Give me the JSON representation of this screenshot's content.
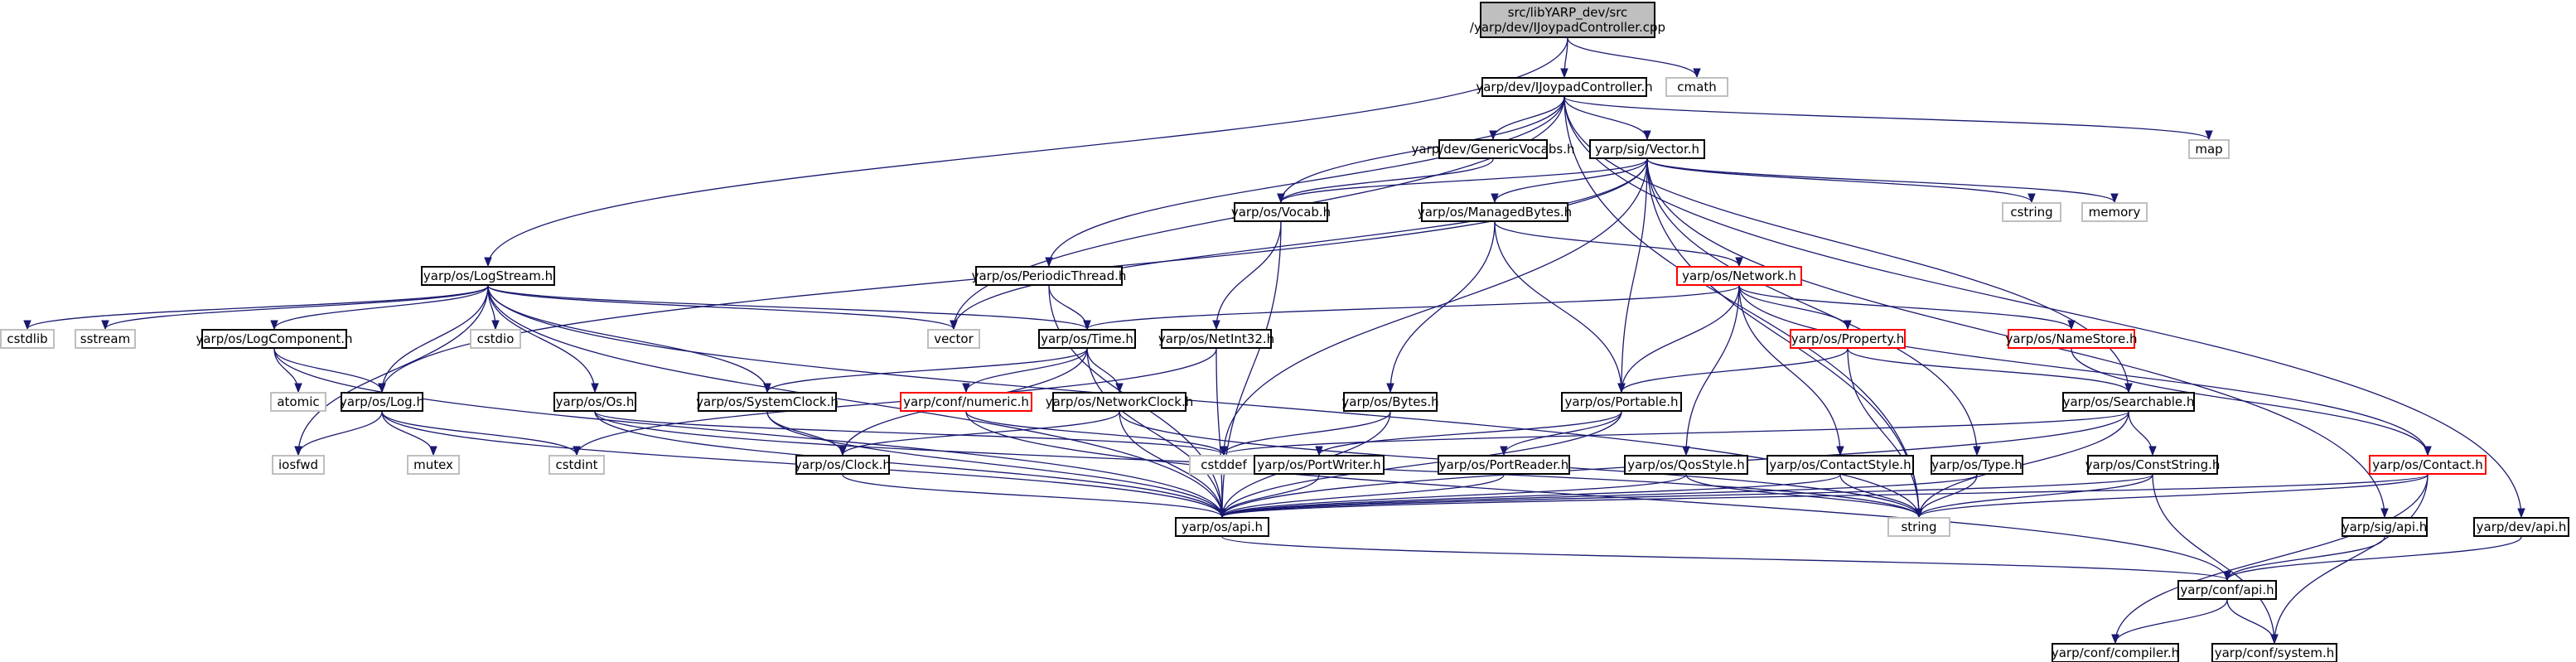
{
  "colors": {
    "edge": "#191970",
    "box_default": "#000000",
    "box_incomplete": "#ff0000",
    "box_external": "#bfbfbf",
    "box_root_fill": "#bfbfbf",
    "text": "#000000"
  },
  "nodes": [
    {
      "id": "root",
      "lines": [
        "src/libYARP_dev/src",
        "/yarp/dev/IJoypadController.cpp"
      ],
      "kind": "root"
    },
    {
      "id": "ijoy",
      "lines": [
        "yarp/dev/IJoypadController.h"
      ],
      "kind": "normal"
    },
    {
      "id": "cmath",
      "lines": [
        "cmath"
      ],
      "kind": "external"
    },
    {
      "id": "logstream",
      "lines": [
        "yarp/os/LogStream.h"
      ],
      "kind": "normal"
    },
    {
      "id": "genvocabs",
      "lines": [
        "yarp/dev/GenericVocabs.h"
      ],
      "kind": "normal"
    },
    {
      "id": "sigvector",
      "lines": [
        "yarp/sig/Vector.h"
      ],
      "kind": "normal"
    },
    {
      "id": "map",
      "lines": [
        "map"
      ],
      "kind": "external"
    },
    {
      "id": "vocab",
      "lines": [
        "yarp/os/Vocab.h"
      ],
      "kind": "normal"
    },
    {
      "id": "managedbytes",
      "lines": [
        "yarp/os/ManagedBytes.h"
      ],
      "kind": "normal"
    },
    {
      "id": "cstring",
      "lines": [
        "cstring"
      ],
      "kind": "external"
    },
    {
      "id": "memory",
      "lines": [
        "memory"
      ],
      "kind": "external"
    },
    {
      "id": "periodic",
      "lines": [
        "yarp/os/PeriodicThread.h"
      ],
      "kind": "normal"
    },
    {
      "id": "network",
      "lines": [
        "yarp/os/Network.h"
      ],
      "kind": "incomplete"
    },
    {
      "id": "cstdlib",
      "lines": [
        "cstdlib"
      ],
      "kind": "external"
    },
    {
      "id": "sstream",
      "lines": [
        "sstream"
      ],
      "kind": "external"
    },
    {
      "id": "logcomp",
      "lines": [
        "yarp/os/LogComponent.h"
      ],
      "kind": "normal"
    },
    {
      "id": "cstdio",
      "lines": [
        "cstdio"
      ],
      "kind": "external"
    },
    {
      "id": "vector",
      "lines": [
        "vector"
      ],
      "kind": "external"
    },
    {
      "id": "time",
      "lines": [
        "yarp/os/Time.h"
      ],
      "kind": "normal"
    },
    {
      "id": "netint32",
      "lines": [
        "yarp/os/NetInt32.h"
      ],
      "kind": "normal"
    },
    {
      "id": "property",
      "lines": [
        "yarp/os/Property.h"
      ],
      "kind": "incomplete"
    },
    {
      "id": "namestore",
      "lines": [
        "yarp/os/NameStore.h"
      ],
      "kind": "incomplete"
    },
    {
      "id": "atomic",
      "lines": [
        "atomic"
      ],
      "kind": "external"
    },
    {
      "id": "log",
      "lines": [
        "yarp/os/Log.h"
      ],
      "kind": "normal"
    },
    {
      "id": "os",
      "lines": [
        "yarp/os/Os.h"
      ],
      "kind": "normal"
    },
    {
      "id": "sysclock",
      "lines": [
        "yarp/os/SystemClock.h"
      ],
      "kind": "normal"
    },
    {
      "id": "numeric",
      "lines": [
        "yarp/conf/numeric.h"
      ],
      "kind": "incomplete"
    },
    {
      "id": "netclock",
      "lines": [
        "yarp/os/NetworkClock.h"
      ],
      "kind": "normal"
    },
    {
      "id": "bytes",
      "lines": [
        "yarp/os/Bytes.h"
      ],
      "kind": "normal"
    },
    {
      "id": "portable",
      "lines": [
        "yarp/os/Portable.h"
      ],
      "kind": "normal"
    },
    {
      "id": "searchable",
      "lines": [
        "yarp/os/Searchable.h"
      ],
      "kind": "normal"
    },
    {
      "id": "iosfwd",
      "lines": [
        "iosfwd"
      ],
      "kind": "external"
    },
    {
      "id": "mutex",
      "lines": [
        "mutex"
      ],
      "kind": "external"
    },
    {
      "id": "cstdint",
      "lines": [
        "cstdint"
      ],
      "kind": "external"
    },
    {
      "id": "clock",
      "lines": [
        "yarp/os/Clock.h"
      ],
      "kind": "normal"
    },
    {
      "id": "cstddef",
      "lines": [
        "cstddef"
      ],
      "kind": "external"
    },
    {
      "id": "portwriter",
      "lines": [
        "yarp/os/PortWriter.h"
      ],
      "kind": "normal"
    },
    {
      "id": "portreader",
      "lines": [
        "yarp/os/PortReader.h"
      ],
      "kind": "normal"
    },
    {
      "id": "qosstyle",
      "lines": [
        "yarp/os/QosStyle.h"
      ],
      "kind": "normal"
    },
    {
      "id": "contactstyle",
      "lines": [
        "yarp/os/ContactStyle.h"
      ],
      "kind": "normal"
    },
    {
      "id": "type",
      "lines": [
        "yarp/os/Type.h"
      ],
      "kind": "normal"
    },
    {
      "id": "conststring",
      "lines": [
        "yarp/os/ConstString.h"
      ],
      "kind": "normal"
    },
    {
      "id": "contact",
      "lines": [
        "yarp/os/Contact.h"
      ],
      "kind": "incomplete"
    },
    {
      "id": "devapi",
      "lines": [
        "yarp/dev/api.h"
      ],
      "kind": "normal"
    },
    {
      "id": "osapi",
      "lines": [
        "yarp/os/api.h"
      ],
      "kind": "normal"
    },
    {
      "id": "string",
      "lines": [
        "string"
      ],
      "kind": "external"
    },
    {
      "id": "sigapi",
      "lines": [
        "yarp/sig/api.h"
      ],
      "kind": "normal"
    },
    {
      "id": "confapi",
      "lines": [
        "yarp/conf/api.h"
      ],
      "kind": "normal"
    },
    {
      "id": "compiler",
      "lines": [
        "yarp/conf/compiler.h"
      ],
      "kind": "normal"
    },
    {
      "id": "system",
      "lines": [
        "yarp/conf/system.h"
      ],
      "kind": "normal"
    }
  ],
  "edges": [
    [
      "root",
      "ijoy"
    ],
    [
      "root",
      "cmath"
    ],
    [
      "root",
      "logstream"
    ],
    [
      "ijoy",
      "genvocabs"
    ],
    [
      "ijoy",
      "sigvector"
    ],
    [
      "ijoy",
      "map"
    ],
    [
      "ijoy",
      "vocab"
    ],
    [
      "ijoy",
      "periodic"
    ],
    [
      "ijoy",
      "vector"
    ],
    [
      "ijoy",
      "searchable"
    ],
    [
      "ijoy",
      "devapi"
    ],
    [
      "ijoy",
      "string"
    ],
    [
      "genvocabs",
      "vocab"
    ],
    [
      "sigvector",
      "vocab"
    ],
    [
      "sigvector",
      "managedbytes"
    ],
    [
      "sigvector",
      "cstring"
    ],
    [
      "sigvector",
      "memory"
    ],
    [
      "sigvector",
      "vector"
    ],
    [
      "sigvector",
      "portable"
    ],
    [
      "sigvector",
      "type"
    ],
    [
      "sigvector",
      "sigapi"
    ],
    [
      "sigvector",
      "string"
    ],
    [
      "sigvector",
      "cstddef"
    ],
    [
      "sigvector",
      "log"
    ],
    [
      "vocab",
      "netint32"
    ],
    [
      "vocab",
      "osapi"
    ],
    [
      "managedbytes",
      "network"
    ],
    [
      "managedbytes",
      "bytes"
    ],
    [
      "managedbytes",
      "portable"
    ],
    [
      "periodic",
      "time"
    ],
    [
      "periodic",
      "osapi"
    ],
    [
      "network",
      "time"
    ],
    [
      "network",
      "property"
    ],
    [
      "network",
      "namestore"
    ],
    [
      "network",
      "portable"
    ],
    [
      "network",
      "qosstyle"
    ],
    [
      "network",
      "contactstyle"
    ],
    [
      "network",
      "contact"
    ],
    [
      "logstream",
      "cstdlib"
    ],
    [
      "logstream",
      "sstream"
    ],
    [
      "logstream",
      "logcomp"
    ],
    [
      "logstream",
      "cstdio"
    ],
    [
      "logstream",
      "vector"
    ],
    [
      "logstream",
      "time"
    ],
    [
      "logstream",
      "log"
    ],
    [
      "logstream",
      "os"
    ],
    [
      "logstream",
      "sysclock"
    ],
    [
      "logstream",
      "iosfwd"
    ],
    [
      "logstream",
      "osapi"
    ],
    [
      "logstream",
      "string"
    ],
    [
      "logcomp",
      "atomic"
    ],
    [
      "logcomp",
      "log"
    ],
    [
      "logcomp",
      "osapi"
    ],
    [
      "time",
      "sysclock"
    ],
    [
      "time",
      "netclock"
    ],
    [
      "time",
      "clock"
    ],
    [
      "time",
      "numeric"
    ],
    [
      "time",
      "osapi"
    ],
    [
      "netint32",
      "cstdint"
    ],
    [
      "netint32",
      "osapi"
    ],
    [
      "property",
      "portable"
    ],
    [
      "property",
      "searchable"
    ],
    [
      "property",
      "string"
    ],
    [
      "namestore",
      "contact"
    ],
    [
      "log",
      "iosfwd"
    ],
    [
      "log",
      "mutex"
    ],
    [
      "log",
      "cstdint"
    ],
    [
      "log",
      "osapi"
    ],
    [
      "os",
      "cstddef"
    ],
    [
      "os",
      "osapi"
    ],
    [
      "os",
      "string"
    ],
    [
      "sysclock",
      "clock"
    ],
    [
      "sysclock",
      "osapi"
    ],
    [
      "numeric",
      "cstddef"
    ],
    [
      "numeric",
      "confapi"
    ],
    [
      "netclock",
      "clock"
    ],
    [
      "netclock",
      "osapi"
    ],
    [
      "netclock",
      "string"
    ],
    [
      "bytes",
      "cstddef"
    ],
    [
      "bytes",
      "osapi"
    ],
    [
      "portable",
      "portwriter"
    ],
    [
      "portable",
      "portreader"
    ],
    [
      "portable",
      "osapi"
    ],
    [
      "searchable",
      "cstddef"
    ],
    [
      "searchable",
      "conststring"
    ],
    [
      "searchable",
      "string"
    ],
    [
      "searchable",
      "osapi"
    ],
    [
      "clock",
      "osapi"
    ],
    [
      "portwriter",
      "osapi"
    ],
    [
      "portreader",
      "osapi"
    ],
    [
      "qosstyle",
      "osapi"
    ],
    [
      "qosstyle",
      "string"
    ],
    [
      "contactstyle",
      "osapi"
    ],
    [
      "contactstyle",
      "string"
    ],
    [
      "type",
      "osapi"
    ],
    [
      "type",
      "string"
    ],
    [
      "conststring",
      "osapi"
    ],
    [
      "conststring",
      "string"
    ],
    [
      "conststring",
      "system"
    ],
    [
      "contact",
      "string"
    ],
    [
      "contact",
      "osapi"
    ],
    [
      "contact",
      "compiler"
    ],
    [
      "contact",
      "system"
    ],
    [
      "osapi",
      "confapi"
    ],
    [
      "sigapi",
      "confapi"
    ],
    [
      "devapi",
      "confapi"
    ],
    [
      "confapi",
      "compiler"
    ],
    [
      "confapi",
      "system"
    ]
  ]
}
